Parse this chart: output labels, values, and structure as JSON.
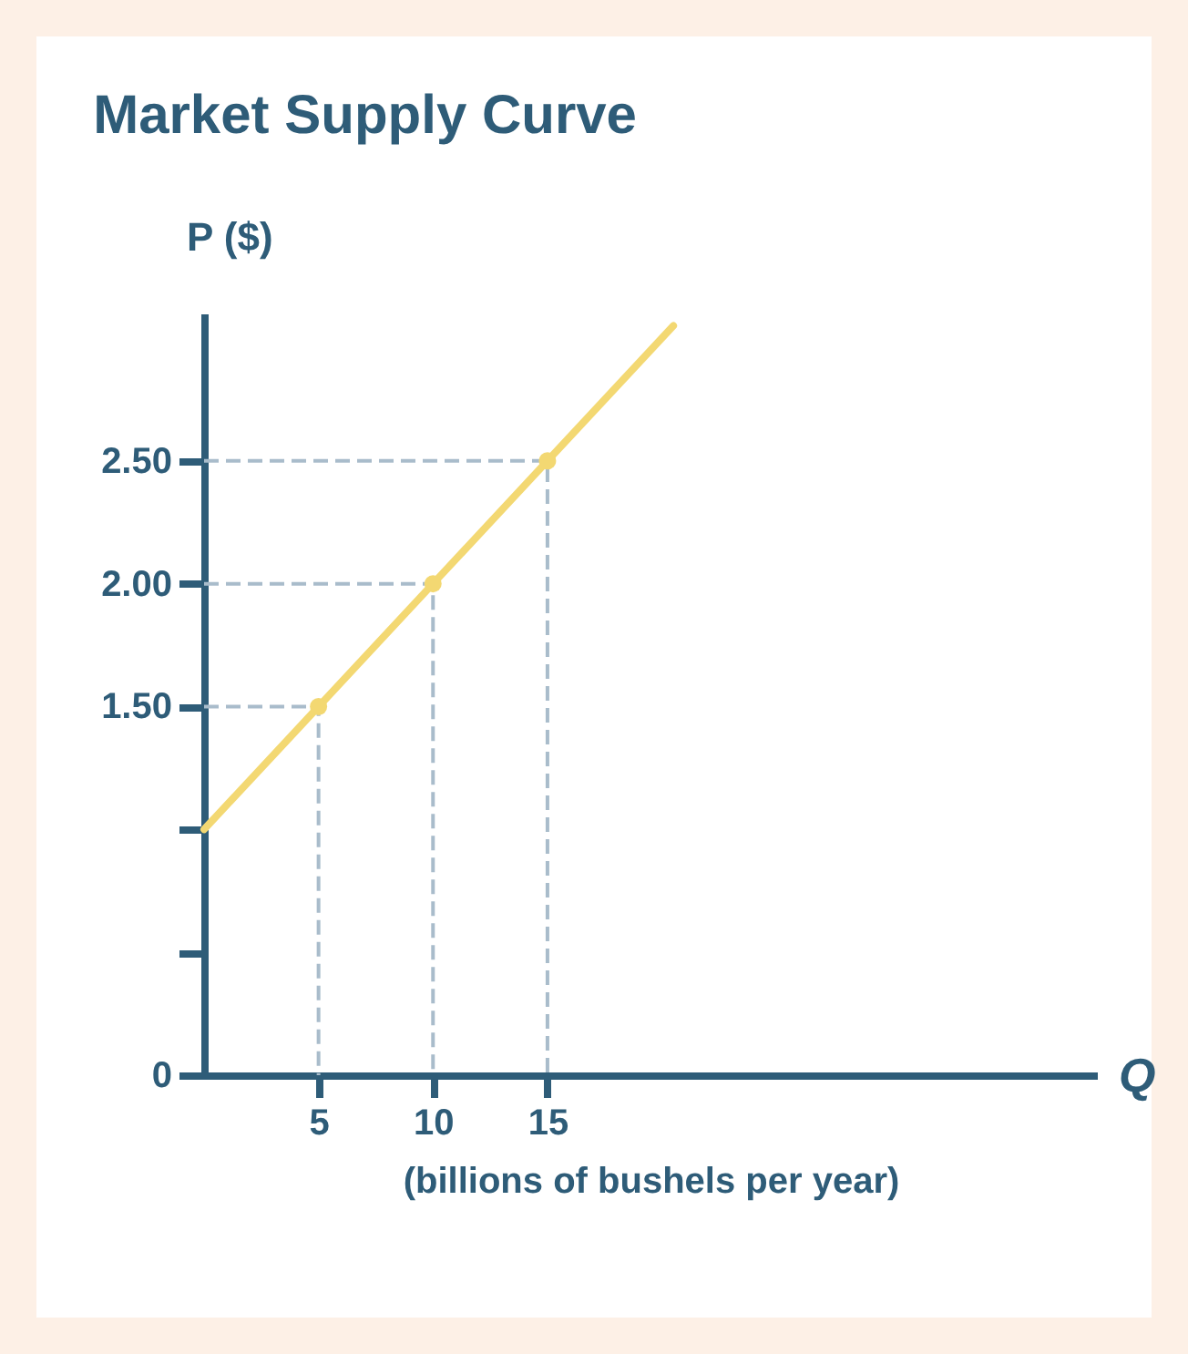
{
  "chart_data": {
    "type": "line",
    "title": "Market Supply Curve",
    "xlabel": "(billions of bushels per year)",
    "ylabel": "P ($)",
    "annotations": [
      "Q"
    ],
    "xlim": [
      0,
      39
    ],
    "xticks": [
      5,
      10,
      15
    ],
    "ylim": [
      0,
      3.1
    ],
    "yticks": [
      {
        "value": 0,
        "label": "0"
      },
      {
        "value": 0.5,
        "label": null
      },
      {
        "value": 1,
        "label": null
      },
      {
        "value": 1.5,
        "label": "1.50"
      },
      {
        "value": 2,
        "label": "2.00"
      },
      {
        "value": 2.5,
        "label": "2.50"
      }
    ],
    "series": [
      {
        "color": "#f3d872",
        "x": [
          0,
          5,
          10,
          15,
          20.5
        ],
        "values": [
          1,
          1.5,
          2,
          2.5,
          3.05
        ],
        "marker": "none"
      },
      {
        "color": "#a9bccb",
        "x": [
          0,
          5,
          5
        ],
        "values": [
          1.5,
          1.5,
          0
        ],
        "marker": "none",
        "line_style": "dashed"
      },
      {
        "color": "#a9bccb",
        "x": [
          0,
          10,
          10
        ],
        "values": [
          2,
          2,
          0
        ],
        "marker": "none",
        "line_style": "dashed"
      },
      {
        "color": "#a9bccb",
        "x": [
          0,
          15,
          15
        ],
        "values": [
          2.5,
          2.5,
          0
        ],
        "marker": "none",
        "line_style": "dashed"
      },
      {
        "type": "scatter",
        "color": "#f3d872",
        "x": [
          5,
          10,
          15
        ],
        "values": [
          1.5,
          2,
          2.5
        ],
        "marker": "circle"
      }
    ]
  }
}
